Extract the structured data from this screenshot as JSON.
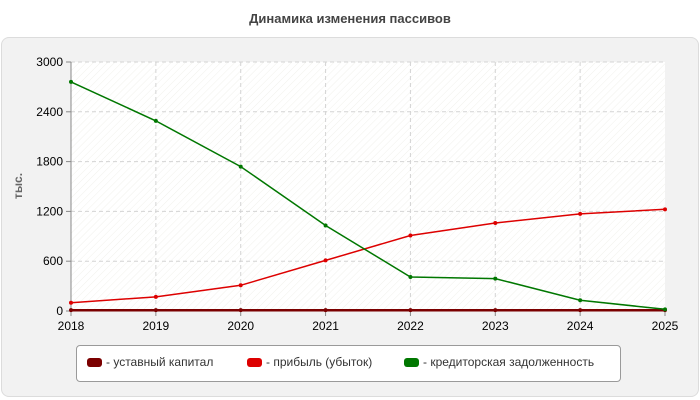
{
  "chart_data": {
    "type": "line",
    "title": "Динамика изменения пассивов",
    "xlabel": "",
    "ylabel": "тыс.",
    "x": [
      "2018",
      "2019",
      "2020",
      "2021",
      "2022",
      "2023",
      "2024",
      "2025"
    ],
    "ylim": [
      0,
      3000
    ],
    "yticks": [
      "0",
      "600",
      "1200",
      "1800",
      "2400",
      "3000"
    ],
    "grid": true,
    "legend_position": "bottom",
    "series": [
      {
        "name": "- уставный капитал",
        "color": "#7b0000",
        "values": [
          10,
          10,
          10,
          10,
          10,
          10,
          10,
          10
        ]
      },
      {
        "name": "- прибыль (убыток)",
        "color": "#dd0000",
        "values": [
          100,
          170,
          310,
          610,
          910,
          1060,
          1170,
          1225
        ]
      },
      {
        "name": "- кредиторская задолженность",
        "color": "#007700",
        "values": [
          2760,
          2290,
          1740,
          1030,
          410,
          390,
          130,
          20
        ]
      }
    ]
  }
}
